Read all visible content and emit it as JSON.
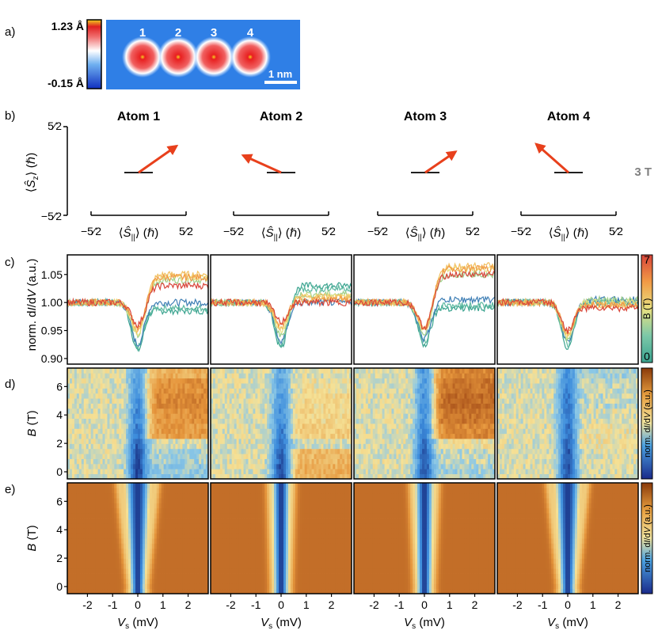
{
  "panel_letters": {
    "a": "a)",
    "b": "b)",
    "c": "c)",
    "d": "d)",
    "e": "e)"
  },
  "panel_a": {
    "scale_max": "1.23 Å",
    "scale_min": "-0.15 Å",
    "atom_numbers": [
      "1",
      "2",
      "3",
      "4"
    ],
    "scalebar_label": "1 nm"
  },
  "panel_b": {
    "atom_titles": [
      "Atom 1",
      "Atom 2",
      "Atom 3",
      "Atom 4"
    ],
    "field_label": "3 T",
    "sz_top": "5⁄2",
    "sz_bottom": "−5⁄2",
    "spar_left": "−5⁄2",
    "spar_right": "5⁄2",
    "y_axis_label_prefix": "⟨",
    "y_axis_label_main": "Ŝ",
    "y_axis_label_sub": "z",
    "y_axis_label_suffix": "⟩ (ℏ)",
    "x_axis_label_prefix": "⟨",
    "x_axis_label_main": "Ŝ",
    "x_axis_label_sub": "||",
    "x_axis_label_suffix": "⟩ (ℏ)",
    "spins": [
      {
        "s_par": 1.0,
        "s_z": 0.7
      },
      {
        "s_par": -1.0,
        "s_z": 0.45
      },
      {
        "s_par": 0.8,
        "s_z": 0.55
      },
      {
        "s_par": -0.85,
        "s_z": 0.75
      }
    ]
  },
  "chart_data": [
    {
      "type": "line",
      "panel": "c",
      "ylabel_prefix": "norm. d",
      "ylabel_i": "I",
      "ylabel_mid": "/d",
      "ylabel_v": "V",
      "ylabel_suffix": " (a.u.)",
      "ylim": [
        0.89,
        1.085
      ],
      "xlim": [
        -2.8,
        2.8
      ],
      "yticks": [
        "0.90",
        "0.95",
        "1.00",
        "1.05"
      ],
      "ytick_values": [
        0.9,
        0.95,
        1.0,
        1.05
      ],
      "colorbar_label": "B (T)",
      "colorbar_ticks": [
        "0",
        "7"
      ],
      "fields_T": [
        0,
        1,
        2,
        3,
        4,
        5,
        6,
        7
      ],
      "field_colors": [
        "#3aa38f",
        "#5cb8a0",
        "#3f7fb5",
        "#9fd08a",
        "#e8e080",
        "#f2c060",
        "#f19a45",
        "#d8453a"
      ],
      "curves": [
        {
          "atom": 1,
          "dip_depth": [
            0.085,
            0.08,
            0.075,
            0.06,
            0.055,
            0.05,
            0.045,
            0.04
          ],
          "post_level": [
            0.985,
            0.99,
            1.0,
            1.04,
            1.045,
            1.05,
            1.045,
            1.03
          ]
        },
        {
          "atom": 2,
          "dip_depth": [
            0.08,
            0.075,
            0.07,
            0.06,
            0.05,
            0.045,
            0.04,
            0.035
          ],
          "post_level": [
            1.03,
            1.025,
            1.0,
            1.015,
            1.01,
            1.01,
            1.005,
            1.0
          ]
        },
        {
          "atom": 3,
          "dip_depth": [
            0.075,
            0.07,
            0.065,
            0.055,
            0.05,
            0.05,
            0.045,
            0.045
          ],
          "post_level": [
            0.99,
            0.995,
            1.005,
            1.05,
            1.06,
            1.065,
            1.06,
            1.05
          ]
        },
        {
          "atom": 4,
          "dip_depth": [
            0.08,
            0.075,
            0.07,
            0.065,
            0.06,
            0.06,
            0.055,
            0.05
          ],
          "post_level": [
            1.0,
            1.0,
            1.005,
            1.005,
            1.0,
            0.995,
            0.995,
            0.99
          ]
        }
      ]
    },
    {
      "type": "heatmap",
      "panel": "d",
      "ylabel_b": "B",
      "ylabel_suffix": " (T)",
      "yticks": [
        "0",
        "2",
        "4",
        "6"
      ],
      "ytick_values": [
        0,
        2,
        4,
        6
      ],
      "ylim": [
        -0.5,
        7.3
      ],
      "xlim": [
        -2.8,
        2.8
      ],
      "colorbar_label_prefix": "norm. d",
      "colorbar_label_i": "I",
      "colorbar_label_mid": "/d",
      "colorbar_label_v": "V",
      "colorbar_label_suffix": " (a.u.)"
    },
    {
      "type": "heatmap",
      "panel": "e",
      "ylabel_b": "B",
      "ylabel_suffix": " (T)",
      "yticks": [
        "0",
        "2",
        "4",
        "6"
      ],
      "ytick_values": [
        0,
        2,
        4,
        6
      ],
      "ylim": [
        -0.5,
        7.3
      ],
      "xlim": [
        -2.8,
        2.8
      ],
      "xlabel_v": "V",
      "xlabel_sub": "s",
      "xlabel_suffix": " (mV)",
      "xticks": [
        "-2",
        "-1",
        "0",
        "1",
        "2"
      ],
      "xtick_values": [
        -2,
        -1,
        0,
        1,
        2
      ],
      "colorbar_label_prefix": "norm. d",
      "colorbar_label_i": "I",
      "colorbar_label_mid": "/d",
      "colorbar_label_v": "V",
      "colorbar_label_suffix": " (a.u.)"
    }
  ],
  "colors": {
    "arrow": "#e8401c",
    "field_label": "#808080",
    "topo_bg": "#2f7fe6",
    "heat_low": "#1a2a8a",
    "heat_high": "#c0561a"
  }
}
